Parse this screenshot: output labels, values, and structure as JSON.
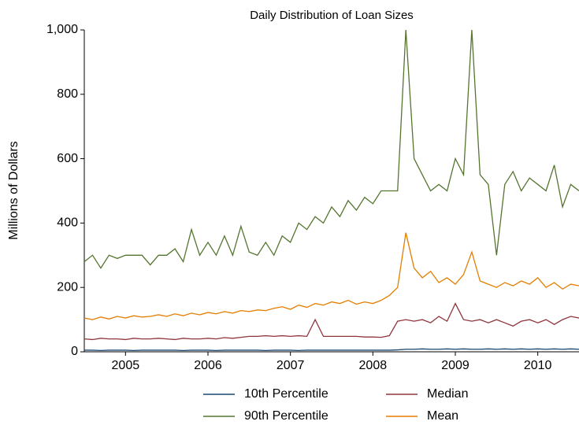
{
  "chart_data": {
    "type": "line",
    "title": "Daily Distribution of Loan Sizes",
    "y_label": "Millions of Dollars",
    "x": [
      2005.0,
      2005.1,
      2005.2,
      2005.3,
      2005.4,
      2005.5,
      2005.6,
      2005.7,
      2005.8,
      2005.9,
      2006.0,
      2006.1,
      2006.2,
      2006.3,
      2006.4,
      2006.5,
      2006.6,
      2006.7,
      2006.8,
      2006.9,
      2007.0,
      2007.1,
      2007.2,
      2007.3,
      2007.4,
      2007.5,
      2007.6,
      2007.7,
      2007.8,
      2007.9,
      2008.0,
      2008.1,
      2008.2,
      2008.3,
      2008.4,
      2008.5,
      2008.6,
      2008.7,
      2008.8,
      2008.9,
      2009.0,
      2009.1,
      2009.2,
      2009.3,
      2009.4,
      2009.5,
      2009.6,
      2009.7,
      2009.8,
      2009.9,
      2010.0,
      2010.1,
      2010.2,
      2010.3,
      2010.4,
      2010.5,
      2010.6,
      2010.7,
      2010.8,
      2010.9,
      2011.0
    ],
    "series": [
      {
        "name": "10th Percentile",
        "color": "#1a476f",
        "values": [
          5,
          5,
          4,
          5,
          5,
          5,
          4,
          5,
          5,
          5,
          5,
          5,
          4,
          5,
          5,
          5,
          4,
          5,
          5,
          5,
          5,
          5,
          4,
          5,
          5,
          5,
          4,
          5,
          5,
          5,
          5,
          5,
          5,
          5,
          5,
          5,
          5,
          5,
          6,
          8,
          8,
          9,
          8,
          8,
          9,
          8,
          9,
          8,
          8,
          9,
          8,
          9,
          8,
          9,
          8,
          9,
          8,
          9,
          8,
          9,
          8
        ]
      },
      {
        "name": "Median",
        "color": "#90353b",
        "values": [
          40,
          38,
          42,
          40,
          40,
          38,
          42,
          40,
          40,
          42,
          40,
          38,
          42,
          40,
          40,
          42,
          40,
          44,
          42,
          45,
          48,
          48,
          50,
          48,
          50,
          48,
          50,
          48,
          100,
          48,
          48,
          48,
          48,
          48,
          46,
          46,
          45,
          50,
          95,
          100,
          95,
          100,
          90,
          110,
          95,
          150,
          100,
          95,
          100,
          90,
          100,
          90,
          80,
          95,
          100,
          90,
          100,
          85,
          100,
          110,
          105
        ]
      },
      {
        "name": "90th Percentile",
        "color": "#55752f",
        "values": [
          280,
          300,
          260,
          300,
          290,
          300,
          300,
          300,
          270,
          300,
          300,
          320,
          280,
          380,
          300,
          340,
          300,
          360,
          300,
          390,
          310,
          300,
          340,
          300,
          360,
          340,
          400,
          380,
          420,
          400,
          450,
          420,
          470,
          440,
          480,
          460,
          500,
          500,
          500,
          1000,
          600,
          550,
          500,
          520,
          500,
          600,
          550,
          1000,
          550,
          520,
          300,
          520,
          560,
          500,
          540,
          520,
          500,
          580,
          450,
          520,
          500
        ]
      },
      {
        "name": "Mean",
        "color": "#e37e00",
        "values": [
          105,
          100,
          108,
          102,
          110,
          105,
          112,
          108,
          110,
          115,
          110,
          118,
          112,
          120,
          115,
          122,
          118,
          125,
          120,
          128,
          125,
          130,
          128,
          135,
          140,
          132,
          145,
          138,
          150,
          145,
          155,
          150,
          160,
          148,
          155,
          150,
          160,
          175,
          200,
          370,
          260,
          230,
          250,
          215,
          230,
          210,
          240,
          310,
          220,
          210,
          200,
          215,
          205,
          220,
          210,
          230,
          200,
          215,
          195,
          210,
          205
        ]
      }
    ],
    "xlim": [
      2005,
      2011
    ],
    "xticks": [
      {
        "value": 2005.5,
        "label": "2005"
      },
      {
        "value": 2006.5,
        "label": "2006"
      },
      {
        "value": 2007.5,
        "label": "2007"
      },
      {
        "value": 2008.5,
        "label": "2008"
      },
      {
        "value": 2009.5,
        "label": "2009"
      },
      {
        "value": 2010.5,
        "label": "2010"
      }
    ],
    "ylim": [
      0,
      1000
    ],
    "yticks": [
      0,
      200,
      400,
      600,
      800,
      {
        "value": 1000,
        "label": "1,000"
      }
    ],
    "grid": false
  }
}
